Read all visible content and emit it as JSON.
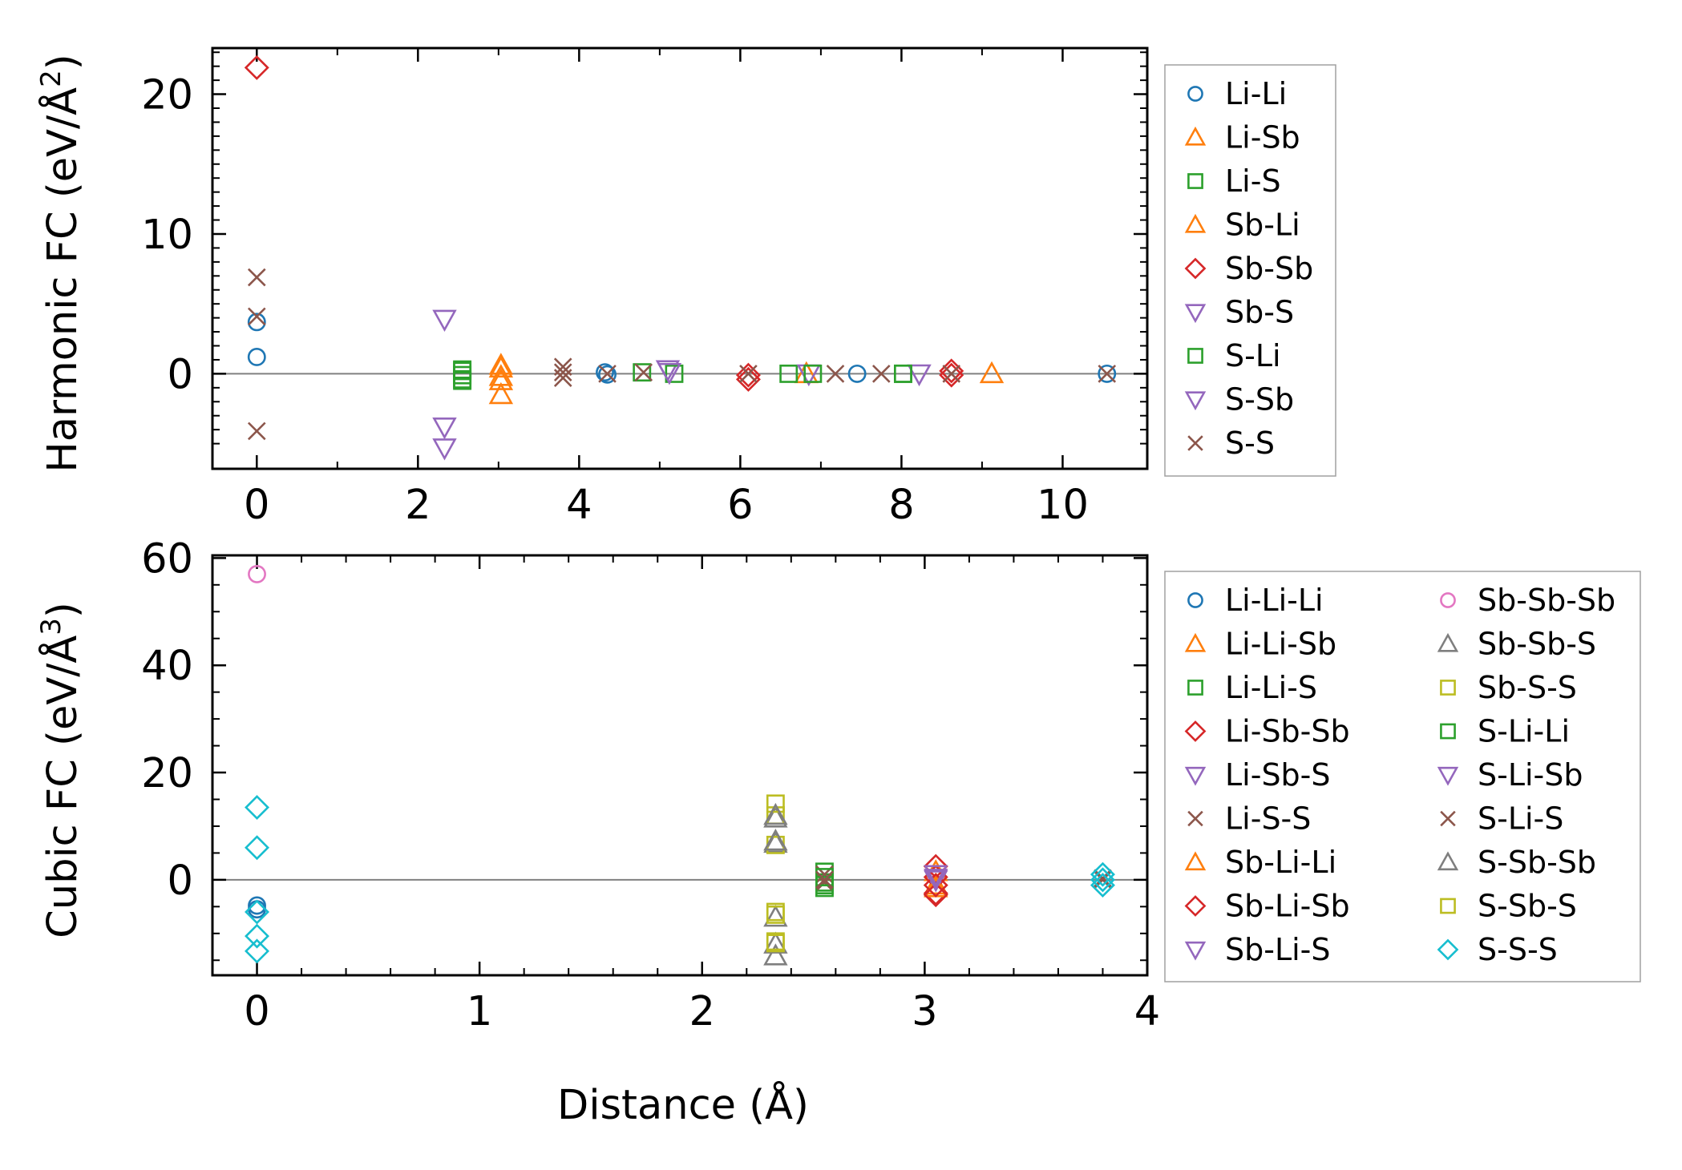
{
  "figure": {
    "xlabel": "Distance (Å)",
    "colors": {
      "blue": "#1f77b4",
      "orange": "#ff7f0e",
      "green": "#2ca02c",
      "red": "#d62728",
      "purple": "#9467bd",
      "brown": "#8c564b",
      "pink": "#e377c2",
      "gray": "#7f7f7f",
      "olive": "#bcbd22",
      "cyan": "#17becf"
    }
  },
  "chart_data": [
    {
      "type": "scatter",
      "title": "",
      "xlabel": "",
      "ylabel": "Harmonic FC (eV/Å",
      "ylabel_power": "2",
      "xlim": [
        -0.55,
        11.05
      ],
      "ylim": [
        -6.8,
        23.3
      ],
      "xticks": [
        0,
        2,
        4,
        6,
        8,
        10
      ],
      "yticks": [
        0,
        10,
        20
      ],
      "xticks_minor": [
        1,
        3,
        5,
        7,
        9
      ],
      "yticks_minor": [
        -5,
        -4,
        -3,
        -2,
        -1,
        1,
        2,
        3,
        4,
        5,
        6,
        7,
        8,
        9,
        11,
        12,
        13,
        14,
        15,
        16,
        17,
        18,
        19,
        21,
        22,
        23
      ],
      "zero_line": true,
      "legend_location": "outside-right-top",
      "series": [
        {
          "name": "Li-Li",
          "marker": "circle",
          "color": "#1f77b4",
          "points": [
            [
              0,
              3.7
            ],
            [
              0,
              1.2
            ],
            [
              4.32,
              0.1
            ],
            [
              4.35,
              -0.05
            ],
            [
              7.45,
              0.0
            ],
            [
              10.55,
              0.0
            ]
          ]
        },
        {
          "name": "Li-Sb",
          "marker": "triangle-up",
          "color": "#ff7f0e",
          "points": [
            [
              3.03,
              0.6
            ],
            [
              3.03,
              -0.5
            ],
            [
              3.03,
              -1.5
            ],
            [
              6.82,
              0.0
            ],
            [
              9.12,
              0.0
            ]
          ]
        },
        {
          "name": "Li-S",
          "marker": "square",
          "color": "#2ca02c",
          "points": [
            [
              2.55,
              0.3
            ],
            [
              2.55,
              -0.1
            ],
            [
              2.55,
              -0.5
            ],
            [
              4.78,
              0.1
            ],
            [
              6.6,
              0.0
            ],
            [
              8.02,
              0.0
            ]
          ]
        },
        {
          "name": "Sb-Li",
          "marker": "triangle-up",
          "color": "#ff7f0e",
          "points": [
            [
              3.03,
              0.4
            ],
            [
              3.03,
              -0.2
            ]
          ]
        },
        {
          "name": "Sb-Sb",
          "marker": "diamond",
          "color": "#d62728",
          "points": [
            [
              0,
              21.9
            ],
            [
              6.1,
              -0.1
            ],
            [
              6.1,
              -0.4
            ],
            [
              8.62,
              0.2
            ],
            [
              8.62,
              -0.1
            ]
          ]
        },
        {
          "name": "Sb-S",
          "marker": "triangle-down",
          "color": "#9467bd",
          "points": [
            [
              2.33,
              3.9
            ],
            [
              2.33,
              -3.8
            ],
            [
              5.1,
              0.3
            ],
            [
              6.85,
              0.0
            ],
            [
              8.22,
              0.0
            ]
          ]
        },
        {
          "name": "S-Li",
          "marker": "square",
          "color": "#2ca02c",
          "points": [
            [
              2.55,
              0.2
            ],
            [
              2.55,
              -0.4
            ],
            [
              5.18,
              0.0
            ],
            [
              6.9,
              0.0
            ],
            [
              8.02,
              0.0
            ]
          ]
        },
        {
          "name": "S-Sb",
          "marker": "triangle-down",
          "color": "#9467bd",
          "points": [
            [
              2.33,
              -5.3
            ],
            [
              5.12,
              0.1
            ]
          ]
        },
        {
          "name": "S-S",
          "marker": "x",
          "color": "#8c564b",
          "points": [
            [
              0,
              6.9
            ],
            [
              0,
              4.1
            ],
            [
              0,
              -4.1
            ],
            [
              3.8,
              0.5
            ],
            [
              3.8,
              0.1
            ],
            [
              3.8,
              -0.3
            ],
            [
              4.35,
              0.0
            ],
            [
              4.8,
              0.1
            ],
            [
              6.1,
              0.0
            ],
            [
              7.18,
              0.0
            ],
            [
              7.75,
              0.0
            ],
            [
              8.62,
              0.0
            ],
            [
              10.55,
              0.0
            ]
          ]
        }
      ]
    },
    {
      "type": "scatter",
      "title": "",
      "xlabel": "Distance (Å)",
      "ylabel": "Cubic FC (eV/Å",
      "ylabel_power": "3",
      "xlim": [
        -0.2,
        4.0
      ],
      "ylim": [
        -17.8,
        60.5
      ],
      "xticks": [
        0,
        1,
        2,
        3,
        4
      ],
      "yticks": [
        0,
        20,
        40,
        60
      ],
      "xticks_minor": [
        0.2,
        0.4,
        0.6,
        0.8,
        1.2,
        1.4,
        1.6,
        1.8,
        2.2,
        2.4,
        2.6,
        2.8,
        3.2,
        3.4,
        3.6,
        3.8
      ],
      "yticks_minor": [
        -15,
        -10,
        -5,
        5,
        10,
        15,
        25,
        30,
        35,
        45,
        50,
        55
      ],
      "zero_line": true,
      "legend_location": "outside-right-top",
      "series": [
        {
          "name": "Li-Li-Li",
          "marker": "circle",
          "color": "#1f77b4",
          "points": [
            [
              0,
              -4.8
            ],
            [
              0,
              -5.5
            ]
          ]
        },
        {
          "name": "Li-Li-Sb",
          "marker": "triangle-up",
          "color": "#ff7f0e",
          "points": [
            [
              3.05,
              1.5
            ],
            [
              3.05,
              -1.0
            ]
          ]
        },
        {
          "name": "Li-Li-S",
          "marker": "square",
          "color": "#2ca02c",
          "points": [
            [
              2.55,
              1.5
            ],
            [
              2.55,
              -0.5
            ],
            [
              2.55,
              -1.5
            ]
          ]
        },
        {
          "name": "Li-Sb-Sb",
          "marker": "diamond",
          "color": "#d62728",
          "points": [
            [
              3.05,
              2.5
            ],
            [
              3.05,
              0.5
            ],
            [
              3.05,
              -2.5
            ]
          ]
        },
        {
          "name": "Li-Sb-S",
          "marker": "triangle-down",
          "color": "#9467bd",
          "points": [
            [
              3.05,
              0.0
            ]
          ]
        },
        {
          "name": "Li-S-S",
          "marker": "x",
          "color": "#8c564b",
          "points": [
            [
              2.55,
              1.0
            ],
            [
              2.55,
              -0.5
            ],
            [
              3.8,
              0.0
            ]
          ]
        },
        {
          "name": "Sb-Li-Li",
          "marker": "triangle-up",
          "color": "#ff7f0e",
          "points": [
            [
              3.05,
              -1.5
            ]
          ]
        },
        {
          "name": "Sb-Li-Sb",
          "marker": "diamond",
          "color": "#d62728",
          "points": [
            [
              3.05,
              -1.0
            ],
            [
              3.05,
              -2.8
            ]
          ]
        },
        {
          "name": "Sb-Li-S",
          "marker": "triangle-down",
          "color": "#9467bd",
          "points": [
            [
              3.05,
              1.0
            ]
          ]
        },
        {
          "name": "Sb-Sb-Sb",
          "marker": "circle",
          "color": "#e377c2",
          "points": [
            [
              0,
              57.0
            ]
          ]
        },
        {
          "name": "Sb-Sb-S",
          "marker": "triangle-up",
          "color": "#7f7f7f",
          "points": [
            [
              2.33,
              11.5
            ],
            [
              2.33,
              6.8
            ],
            [
              2.33,
              -7.0
            ],
            [
              2.33,
              -12.0
            ],
            [
              2.33,
              -14.2
            ]
          ]
        },
        {
          "name": "Sb-S-S",
          "marker": "square",
          "color": "#bcbd22",
          "points": [
            [
              2.33,
              14.2
            ],
            [
              2.33,
              12.0
            ],
            [
              2.33,
              6.5
            ],
            [
              2.33,
              -6.5
            ],
            [
              2.33,
              -11.5
            ]
          ]
        },
        {
          "name": "S-Li-Li",
          "marker": "square",
          "color": "#2ca02c",
          "points": [
            [
              2.55,
              0.5
            ],
            [
              2.55,
              -1.0
            ]
          ]
        },
        {
          "name": "S-Li-Sb",
          "marker": "triangle-down",
          "color": "#9467bd",
          "points": [
            [
              3.05,
              0.3
            ]
          ]
        },
        {
          "name": "S-Li-S",
          "marker": "x",
          "color": "#8c564b",
          "points": [
            [
              2.55,
              0.0
            ],
            [
              3.8,
              0.3
            ]
          ]
        },
        {
          "name": "S-Sb-Sb",
          "marker": "triangle-up",
          "color": "#7f7f7f",
          "points": [
            [
              2.33,
              12.0
            ],
            [
              2.33,
              7.2
            ]
          ]
        },
        {
          "name": "S-Sb-S",
          "marker": "square",
          "color": "#bcbd22",
          "points": [
            [
              2.33,
              -6.0
            ],
            [
              2.33,
              -11.8
            ]
          ]
        },
        {
          "name": "S-S-S",
          "marker": "diamond",
          "color": "#17becf",
          "points": [
            [
              0,
              13.5
            ],
            [
              0,
              6.0
            ],
            [
              0,
              -6.0
            ],
            [
              0,
              -10.5
            ],
            [
              0,
              -13.3
            ],
            [
              3.8,
              1.0
            ],
            [
              3.8,
              0.0
            ],
            [
              3.8,
              -1.0
            ]
          ]
        }
      ]
    }
  ]
}
